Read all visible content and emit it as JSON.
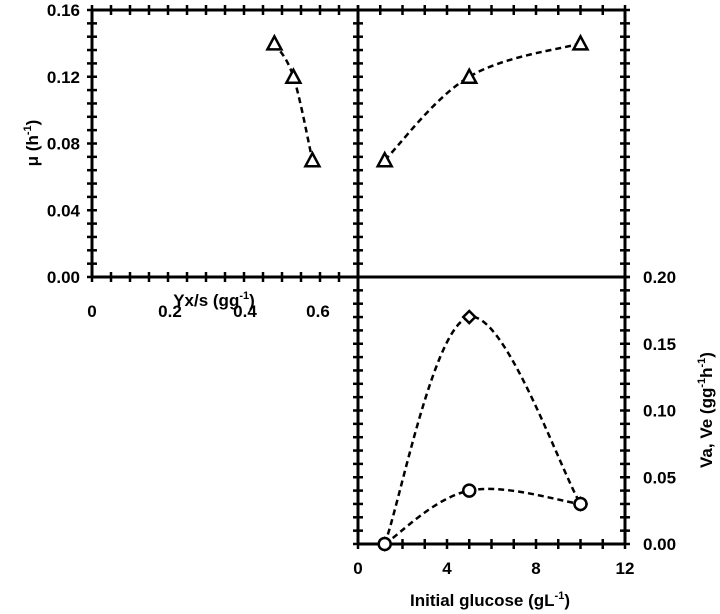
{
  "chart_data": [
    {
      "type": "scatter",
      "panel": "top-left",
      "xlabel": "Yx/s (gg",
      "xlabel_sup": "-1",
      "xlabel_end": ")",
      "ylabel": "μ (h",
      "ylabel_sup": "-1",
      "ylabel_end": ")",
      "xlim": [
        0,
        0.7
      ],
      "ylim": [
        0,
        0.16
      ],
      "x_ticks": [
        "0",
        "0.2",
        "0.4",
        "0.6"
      ],
      "y_ticks": [
        "0.00",
        "0.04",
        "0.08",
        "0.12",
        "0.16"
      ],
      "series": [
        {
          "marker": "triangle",
          "x": [
            0.48,
            0.53,
            0.58
          ],
          "y": [
            0.14,
            0.12,
            0.07
          ]
        }
      ]
    },
    {
      "type": "line",
      "panel": "top-right",
      "xlim": [
        0,
        12
      ],
      "ylim": [
        0,
        0.16
      ],
      "series": [
        {
          "marker": "triangle",
          "x": [
            1.2,
            5,
            10
          ],
          "y": [
            0.07,
            0.12,
            0.14
          ]
        }
      ]
    },
    {
      "type": "line",
      "panel": "bottom-right",
      "xlabel": "Initial glucose (gL",
      "xlabel_sup": "-1",
      "xlabel_end": ")",
      "ylabel": "Va, Ve (gg",
      "ylabel_sup1": "-1",
      "ylabel_mid": "h",
      "ylabel_sup2": "-1",
      "ylabel_end": ")",
      "xlim": [
        0,
        12
      ],
      "ylim": [
        0,
        0.2
      ],
      "x_ticks": [
        "0",
        "4",
        "8",
        "12"
      ],
      "y_ticks": [
        "0.00",
        "0.05",
        "0.10",
        "0.15",
        "0.20"
      ],
      "series": [
        {
          "marker": "diamond",
          "x": [
            1.2,
            5,
            10
          ],
          "y": [
            0,
            0.17,
            0.03
          ]
        },
        {
          "marker": "circle",
          "x": [
            1.2,
            5,
            10
          ],
          "y": [
            0,
            0.04,
            0.03
          ]
        }
      ]
    }
  ]
}
